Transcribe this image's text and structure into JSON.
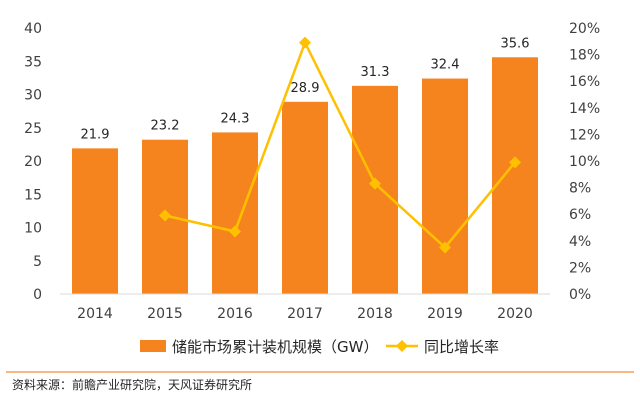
{
  "chart_data": {
    "type": "bar",
    "categories": [
      "2014",
      "2015",
      "2016",
      "2017",
      "2018",
      "2019",
      "2020"
    ],
    "series": [
      {
        "name": "储能市场累计装机规模（GW）",
        "type": "bar",
        "axis": "left",
        "values": [
          21.9,
          23.2,
          24.3,
          28.9,
          31.3,
          32.4,
          35.6
        ],
        "labels": [
          "21.9",
          "23.2",
          "24.3",
          "28.9",
          "31.3",
          "32.4",
          "35.6"
        ]
      },
      {
        "name": "同比增长率",
        "type": "line",
        "axis": "right",
        "values": [
          null,
          5.9,
          4.7,
          18.9,
          8.3,
          3.5,
          9.9
        ]
      }
    ],
    "y_left": {
      "min": 0,
      "max": 40,
      "ticks": [
        "0",
        "5",
        "10",
        "15",
        "20",
        "25",
        "30",
        "35",
        "40"
      ]
    },
    "y_right": {
      "min": 0,
      "max": 20,
      "ticks": [
        "0%",
        "2%",
        "4%",
        "6%",
        "8%",
        "10%",
        "12%",
        "14%",
        "16%",
        "18%",
        "20%"
      ]
    },
    "legend": {
      "position": "bottom",
      "bar_label": "储能市场累计装机规模（GW）",
      "line_label": "同比增长率"
    },
    "source": "资料来源：前瞻产业研究院，天风证券研究所"
  },
  "colors": {
    "bar": "#F5841F",
    "line": "#FFC000",
    "axis": "#595959",
    "source_rule": "#F5A45A"
  }
}
